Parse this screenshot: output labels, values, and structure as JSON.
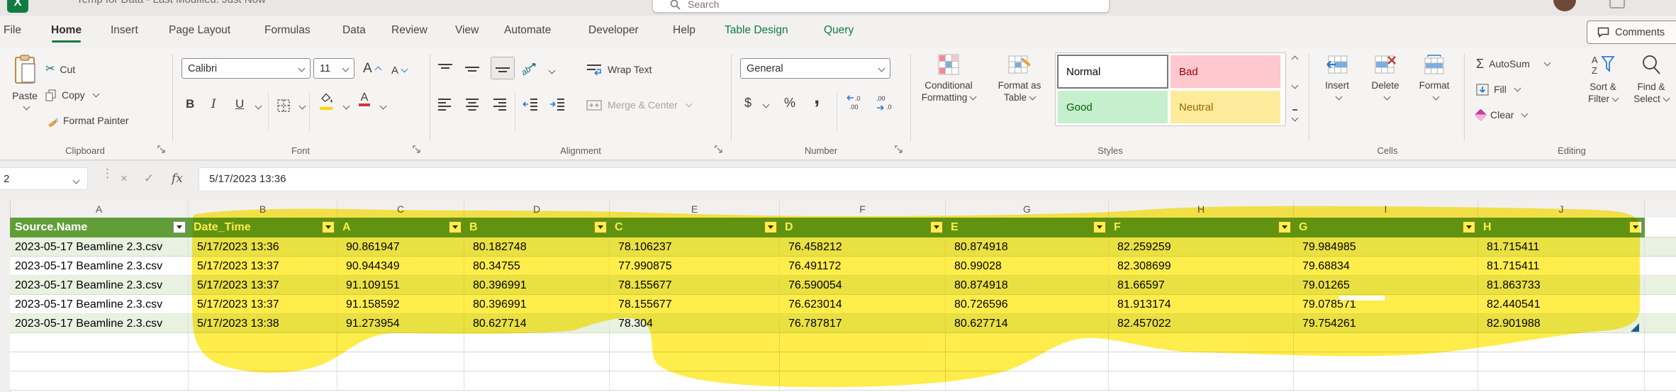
{
  "title_bar": {
    "document_title": "Temp for Data - Last Modified: Just Now",
    "search_placeholder": "Search",
    "comments_label": "Comments"
  },
  "ribbon_tabs": [
    {
      "label": "File"
    },
    {
      "label": "Home",
      "active": true
    },
    {
      "label": "Insert"
    },
    {
      "label": "Page Layout"
    },
    {
      "label": "Formulas"
    },
    {
      "label": "Data"
    },
    {
      "label": "Review"
    },
    {
      "label": "View"
    },
    {
      "label": "Automate"
    },
    {
      "label": "Developer"
    },
    {
      "label": "Help"
    },
    {
      "label": "Table Design",
      "accent": true
    },
    {
      "label": "Query",
      "accent": true
    }
  ],
  "ribbon": {
    "clipboard": {
      "group_label": "Clipboard",
      "paste_label": "Paste",
      "cut_label": "Cut",
      "copy_label": "Copy",
      "format_painter_label": "Format Painter"
    },
    "font": {
      "group_label": "Font",
      "font_name": "Calibri",
      "font_size": "11",
      "bold_label": "B",
      "italic_label": "I",
      "underline_label": "U"
    },
    "alignment": {
      "group_label": "Alignment",
      "wrap_text_label": "Wrap Text",
      "merge_center_label": "Merge & Center"
    },
    "number": {
      "group_label": "Number",
      "format_value": "General",
      "currency_label": "$",
      "percent_label": "%",
      "comma_label": ","
    },
    "styles": {
      "group_label": "Styles",
      "conditional_formatting_line1": "Conditional",
      "conditional_formatting_line2": "Formatting",
      "format_as_table_line1": "Format as",
      "format_as_table_line2": "Table",
      "gallery": [
        {
          "label": "Normal",
          "bg": "#ffffff",
          "fg": "#000000"
        },
        {
          "label": "Bad",
          "bg": "#ffc7ce",
          "fg": "#9c0006"
        },
        {
          "label": "Good",
          "bg": "#c6efce",
          "fg": "#006100"
        },
        {
          "label": "Neutral",
          "bg": "#ffeb9c",
          "fg": "#9c6500"
        }
      ]
    },
    "cells": {
      "group_label": "Cells",
      "insert_label": "Insert",
      "delete_label": "Delete",
      "format_label": "Format"
    },
    "editing": {
      "group_label": "Editing",
      "autosum_label": "AutoSum",
      "fill_label": "Fill",
      "clear_label": "Clear",
      "sort_filter_line1": "Sort &",
      "sort_filter_line2": "Filter",
      "find_select_line1": "Find &",
      "find_select_line2": "Select"
    }
  },
  "formula_bar": {
    "name_box_value": "2",
    "formula_value": "5/17/2023 13:36",
    "fx_label": "fx"
  },
  "sheet": {
    "column_letters": [
      "A",
      "B",
      "C",
      "D",
      "E",
      "F",
      "G",
      "H",
      "I",
      "J"
    ],
    "table_headers": [
      "Source.Name",
      "Date_Time",
      "A",
      "B",
      "C",
      "D",
      "E",
      "F",
      "G",
      "H"
    ],
    "rows": [
      [
        "2023-05-17 Beamline 2.3.csv",
        "5/17/2023 13:36",
        "90.861947",
        "80.182748",
        "78.106237",
        "76.458212",
        "80.874918",
        "82.259259",
        "79.984985",
        "81.715411"
      ],
      [
        "2023-05-17 Beamline 2.3.csv",
        "5/17/2023 13:37",
        "90.944349",
        "80.34755",
        "77.990875",
        "76.491172",
        "80.99028",
        "82.308699",
        "79.68834",
        "81.715411"
      ],
      [
        "2023-05-17 Beamline 2.3.csv",
        "5/17/2023 13:37",
        "91.109151",
        "80.396991",
        "78.155677",
        "76.590054",
        "80.874918",
        "81.66597",
        "79.01265",
        "81.863733"
      ],
      [
        "2023-05-17 Beamline 2.3.csv",
        "5/17/2023 13:37",
        "91.158592",
        "80.396991",
        "78.155677",
        "76.623014",
        "80.726596",
        "81.913174",
        "79.078571",
        "82.440541"
      ],
      [
        "2023-05-17 Beamline 2.3.csv",
        "5/17/2023 13:38",
        "91.273954",
        "80.627714",
        "78.304",
        "76.787817",
        "80.627714",
        "82.457022",
        "79.754261",
        "82.901988"
      ]
    ],
    "colors": {
      "table_header_green": "#619e38",
      "banded_row_green": "#e9f1e1",
      "highlight_yellow": "#ffe81e",
      "excel_green": "#107c41"
    }
  }
}
